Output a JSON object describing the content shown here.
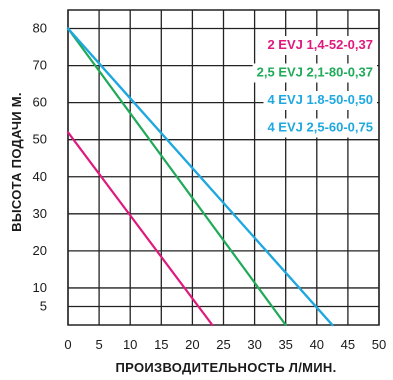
{
  "chart_data": {
    "type": "line",
    "title": "",
    "xlabel": "ПРОИЗВОДИТЕЛЬНОСТЬ Л/МИН.",
    "ylabel": "ВЫСОТА ПОДАЧИ М.",
    "xlim": [
      0,
      50
    ],
    "ylim": [
      0,
      85
    ],
    "x_ticks": [
      "0",
      "5",
      "10",
      "15",
      "20",
      "25",
      "30",
      "35",
      "40",
      "45",
      "50"
    ],
    "y_ticks": [
      "5",
      "10",
      "20",
      "30",
      "40",
      "50",
      "60",
      "70",
      "80"
    ],
    "grid": true,
    "legend_position": "top-right",
    "series": [
      {
        "name": "2 EVJ 1,4-52-0,37",
        "color": "#e0197d",
        "x": [
          0,
          23.2
        ],
        "y": [
          52,
          0
        ]
      },
      {
        "name": "2,5 EVJ 2,1-80-0,37",
        "color": "#1faa59",
        "x": [
          0,
          35
        ],
        "y": [
          80,
          0
        ]
      },
      {
        "name": "4 EVJ 1.8-50-0,50",
        "color": "#1fa8e0",
        "x": [
          0,
          42.5
        ],
        "y": [
          80,
          0
        ]
      },
      {
        "name": "4 EVJ 2,5-60-0,75",
        "color": "#1fa8e0",
        "x": [
          0,
          42.5
        ],
        "y": [
          80,
          0
        ]
      }
    ]
  }
}
